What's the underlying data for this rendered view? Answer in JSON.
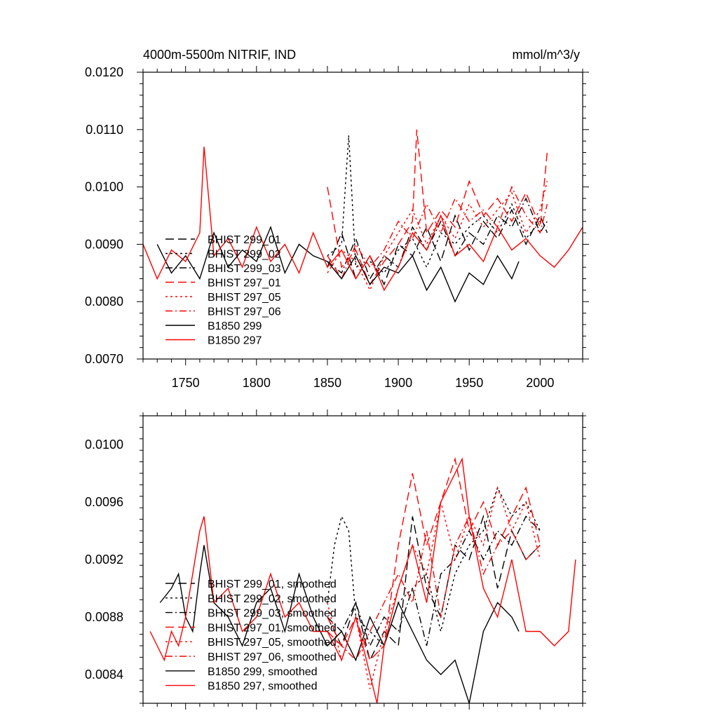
{
  "chart_data": [
    {
      "type": "line",
      "title_left": "4000m-5500m NITRIF, IND",
      "title_right": "mmol/m^3/y",
      "xlim": [
        1720,
        2030
      ],
      "ylim": [
        0.007,
        0.012
      ],
      "x_ticks": [
        1750,
        1800,
        1850,
        1900,
        1950,
        2000
      ],
      "x_tick_labels": [
        "1750",
        "1800",
        "1850",
        "1900",
        "1950",
        "2000"
      ],
      "y_ticks": [
        0.007,
        0.008,
        0.009,
        0.01,
        0.011,
        0.012
      ],
      "y_tick_labels": [
        "0.0070",
        "0.0080",
        "0.0090",
        "0.0100",
        "0.0110",
        "0.0120"
      ],
      "legend": "lower-left",
      "series": [
        {
          "name": "BHIST 299_01",
          "color": "#000000",
          "dash": "longdash",
          "x": [
            1850,
            1860,
            1870,
            1880,
            1890,
            1900,
            1910,
            1920,
            1930,
            1940,
            1950,
            1960,
            1970,
            1980,
            1990,
            2000,
            2005
          ],
          "y": [
            0.0086,
            0.0092,
            0.0084,
            0.0088,
            0.0083,
            0.009,
            0.0088,
            0.0093,
            0.0087,
            0.0095,
            0.0089,
            0.0094,
            0.0091,
            0.0096,
            0.009,
            0.0095,
            0.0092
          ]
        },
        {
          "name": "BHIST 299_02",
          "color": "#000000",
          "dash": "dotted",
          "x": [
            1850,
            1860,
            1865,
            1870,
            1880,
            1890,
            1900,
            1910,
            1920,
            1930,
            1940,
            1950,
            1960,
            1970,
            1980,
            1990,
            2000,
            2005
          ],
          "y": [
            0.0088,
            0.009,
            0.0109,
            0.0086,
            0.0087,
            0.0085,
            0.0089,
            0.0091,
            0.0086,
            0.0092,
            0.009,
            0.0093,
            0.0095,
            0.0092,
            0.0097,
            0.0091,
            0.0094,
            0.0093
          ]
        },
        {
          "name": "BHIST 299_03",
          "color": "#000000",
          "dash": "dashdot",
          "x": [
            1850,
            1860,
            1870,
            1880,
            1890,
            1900,
            1910,
            1920,
            1930,
            1940,
            1950,
            1960,
            1970,
            1980,
            1990,
            2000,
            2005
          ],
          "y": [
            0.0087,
            0.0085,
            0.0091,
            0.0084,
            0.0088,
            0.0086,
            0.0093,
            0.0089,
            0.0094,
            0.0088,
            0.0092,
            0.009,
            0.0095,
            0.0093,
            0.0098,
            0.0092,
            0.0094
          ]
        },
        {
          "name": "BHIST 297_01",
          "color": "#ff0000",
          "dash": "longdash",
          "x": [
            1850,
            1860,
            1870,
            1880,
            1890,
            1900,
            1910,
            1913,
            1920,
            1930,
            1940,
            1950,
            1960,
            1970,
            1980,
            1990,
            2000,
            2005
          ],
          "y": [
            0.01,
            0.0086,
            0.0089,
            0.0083,
            0.0087,
            0.009,
            0.0094,
            0.011,
            0.0092,
            0.0096,
            0.0093,
            0.0101,
            0.0095,
            0.0098,
            0.0094,
            0.0099,
            0.0093,
            0.0106
          ]
        },
        {
          "name": "BHIST 297_05",
          "color": "#ff0000",
          "dash": "dotted",
          "x": [
            1850,
            1860,
            1870,
            1880,
            1890,
            1900,
            1910,
            1920,
            1930,
            1940,
            1950,
            1960,
            1970,
            1980,
            1990,
            2000,
            2005
          ],
          "y": [
            0.0085,
            0.0089,
            0.0087,
            0.0082,
            0.0088,
            0.0092,
            0.0096,
            0.009,
            0.0095,
            0.0091,
            0.0097,
            0.0093,
            0.0096,
            0.0099,
            0.0092,
            0.0096,
            0.0101
          ]
        },
        {
          "name": "BHIST 297_06",
          "color": "#ff0000",
          "dash": "dashdot",
          "x": [
            1850,
            1860,
            1870,
            1880,
            1890,
            1900,
            1910,
            1920,
            1930,
            1940,
            1950,
            1960,
            1970,
            1980,
            1990,
            2000,
            2005
          ],
          "y": [
            0.0088,
            0.0084,
            0.009,
            0.0086,
            0.0089,
            0.0094,
            0.0091,
            0.0097,
            0.0092,
            0.0098,
            0.0094,
            0.0096,
            0.0093,
            0.01,
            0.0095,
            0.0092,
            0.0097
          ]
        },
        {
          "name": "B1850 299",
          "color": "#000000",
          "dash": "solid",
          "x": [
            1730,
            1740,
            1750,
            1760,
            1770,
            1780,
            1790,
            1800,
            1810,
            1820,
            1830,
            1840,
            1850,
            1860,
            1870,
            1880,
            1890,
            1900,
            1910,
            1920,
            1930,
            1940,
            1950,
            1960,
            1970,
            1980,
            1985
          ],
          "y": [
            0.009,
            0.0085,
            0.0088,
            0.0084,
            0.0092,
            0.0086,
            0.0089,
            0.0087,
            0.0093,
            0.0085,
            0.009,
            0.0088,
            0.0087,
            0.0084,
            0.0088,
            0.0083,
            0.0086,
            0.0085,
            0.0088,
            0.0082,
            0.0086,
            0.008,
            0.0085,
            0.0083,
            0.0088,
            0.0084,
            0.0087
          ]
        },
        {
          "name": "B1850 297",
          "color": "#ff0000",
          "dash": "solid",
          "x": [
            1720,
            1730,
            1740,
            1750,
            1760,
            1763,
            1770,
            1780,
            1790,
            1800,
            1810,
            1820,
            1830,
            1840,
            1850,
            1860,
            1870,
            1880,
            1890,
            1900,
            1910,
            1920,
            1930,
            1940,
            1950,
            1960,
            1970,
            1980,
            1990,
            2000,
            2010,
            2020,
            2030
          ],
          "y": [
            0.009,
            0.0084,
            0.0089,
            0.0087,
            0.0092,
            0.0107,
            0.0088,
            0.0091,
            0.0086,
            0.0093,
            0.0087,
            0.009,
            0.0085,
            0.0092,
            0.0086,
            0.0089,
            0.0084,
            0.0088,
            0.0082,
            0.0086,
            0.0092,
            0.0089,
            0.0095,
            0.0088,
            0.009,
            0.0087,
            0.0093,
            0.0089,
            0.0091,
            0.0088,
            0.0086,
            0.0089,
            0.0093
          ]
        }
      ]
    },
    {
      "type": "line",
      "xlim": [
        1720,
        2030
      ],
      "ylim": [
        0.0082,
        0.0102
      ],
      "x_ticks": [
        1750,
        1800,
        1850,
        1900,
        1950,
        2000
      ],
      "y_ticks": [
        0.0084,
        0.0088,
        0.0092,
        0.0096,
        0.01
      ],
      "y_tick_labels": [
        "0.0084",
        "0.0088",
        "0.0092",
        "0.0096",
        "0.0100"
      ],
      "legend": "lower-left",
      "series": [
        {
          "name": "BHIST 299_01, smoothed",
          "color": "#000000",
          "dash": "longdash",
          "x": [
            1850,
            1860,
            1870,
            1880,
            1890,
            1900,
            1910,
            1920,
            1930,
            1940,
            1950,
            1960,
            1970,
            1980,
            1990,
            2000
          ],
          "y": [
            0.0088,
            0.0086,
            0.0089,
            0.0085,
            0.0087,
            0.0086,
            0.0095,
            0.009,
            0.0088,
            0.0093,
            0.0092,
            0.0095,
            0.009,
            0.0094,
            0.0092,
            0.0093
          ]
        },
        {
          "name": "BHIST 299_02, smoothed",
          "color": "#000000",
          "dash": "dotted",
          "x": [
            1850,
            1855,
            1860,
            1865,
            1870,
            1880,
            1890,
            1900,
            1910,
            1920,
            1930,
            1940,
            1950,
            1960,
            1970,
            1980,
            1990,
            2000
          ],
          "y": [
            0.0089,
            0.0093,
            0.0095,
            0.0094,
            0.0088,
            0.0087,
            0.0086,
            0.0089,
            0.009,
            0.0091,
            0.0087,
            0.0091,
            0.0093,
            0.0094,
            0.0097,
            0.0095,
            0.0096,
            0.0094
          ]
        },
        {
          "name": "BHIST 299_03, smoothed",
          "color": "#000000",
          "dash": "dashdot",
          "x": [
            1850,
            1860,
            1870,
            1880,
            1890,
            1900,
            1910,
            1920,
            1930,
            1940,
            1950,
            1960,
            1970,
            1980,
            1990,
            2000
          ],
          "y": [
            0.0088,
            0.0087,
            0.0089,
            0.0086,
            0.0088,
            0.0087,
            0.009,
            0.0086,
            0.0091,
            0.0092,
            0.0094,
            0.0092,
            0.0094,
            0.0093,
            0.0095,
            0.0094
          ]
        },
        {
          "name": "BHIST 297_01, smoothed",
          "color": "#ff0000",
          "dash": "longdash",
          "x": [
            1850,
            1860,
            1870,
            1880,
            1890,
            1900,
            1910,
            1920,
            1930,
            1940,
            1950,
            1960,
            1970,
            1980,
            1990,
            2000
          ],
          "y": [
            0.0087,
            0.0086,
            0.0088,
            0.0085,
            0.0086,
            0.0093,
            0.0098,
            0.0093,
            0.0096,
            0.0099,
            0.0094,
            0.0096,
            0.0093,
            0.0095,
            0.0097,
            0.0093
          ]
        },
        {
          "name": "BHIST 297_05, smoothed",
          "color": "#ff0000",
          "dash": "dotted",
          "x": [
            1850,
            1860,
            1870,
            1880,
            1890,
            1900,
            1910,
            1920,
            1930,
            1940,
            1950,
            1960,
            1970,
            1980,
            1990,
            2000
          ],
          "y": [
            0.0089,
            0.0085,
            0.0088,
            0.0083,
            0.0087,
            0.009,
            0.0093,
            0.0091,
            0.0096,
            0.0092,
            0.0095,
            0.0093,
            0.0097,
            0.0094,
            0.0096,
            0.0092
          ]
        },
        {
          "name": "BHIST 297_06, smoothed",
          "color": "#ff0000",
          "dash": "dashdot",
          "x": [
            1850,
            1860,
            1870,
            1880,
            1890,
            1900,
            1910,
            1920,
            1930,
            1940,
            1950,
            1960,
            1970,
            1980,
            1990,
            2000
          ],
          "y": [
            0.0088,
            0.0086,
            0.0085,
            0.0087,
            0.0089,
            0.0091,
            0.0089,
            0.0094,
            0.0088,
            0.0093,
            0.0095,
            0.0091,
            0.0093,
            0.0094,
            0.0092,
            0.0093
          ]
        },
        {
          "name": "B1850 299, smoothed",
          "color": "#000000",
          "dash": "solid",
          "x": [
            1732,
            1740,
            1745,
            1750,
            1755,
            1760,
            1763,
            1770,
            1780,
            1790,
            1800,
            1810,
            1820,
            1830,
            1840,
            1850,
            1860,
            1870,
            1880,
            1890,
            1900,
            1910,
            1920,
            1930,
            1940,
            1950,
            1960,
            1970,
            1980,
            1985
          ],
          "y": [
            0.0089,
            0.009,
            0.0091,
            0.0088,
            0.0087,
            0.0091,
            0.0093,
            0.0089,
            0.0088,
            0.0086,
            0.0089,
            0.009,
            0.0087,
            0.0091,
            0.0088,
            0.0086,
            0.0087,
            0.0085,
            0.0088,
            0.0086,
            0.0089,
            0.0087,
            0.0085,
            0.0084,
            0.0085,
            0.0082,
            0.0087,
            0.0089,
            0.0088,
            0.0087
          ]
        },
        {
          "name": "B1850 297, smoothed",
          "color": "#ff0000",
          "dash": "solid",
          "x": [
            1725,
            1730,
            1735,
            1740,
            1745,
            1750,
            1755,
            1760,
            1763,
            1770,
            1780,
            1790,
            1800,
            1810,
            1820,
            1830,
            1840,
            1850,
            1860,
            1870,
            1880,
            1885,
            1890,
            1900,
            1910,
            1920,
            1930,
            1940,
            1945,
            1950,
            1960,
            1970,
            1980,
            1990,
            2000,
            2010,
            2020,
            2025
          ],
          "y": [
            0.0087,
            0.0086,
            0.0085,
            0.0087,
            0.0086,
            0.0088,
            0.0091,
            0.0094,
            0.0095,
            0.0089,
            0.009,
            0.0087,
            0.0088,
            0.0091,
            0.0088,
            0.0089,
            0.0087,
            0.0087,
            0.0085,
            0.0088,
            0.0084,
            0.0082,
            0.0086,
            0.009,
            0.0093,
            0.0089,
            0.0096,
            0.0098,
            0.0099,
            0.0095,
            0.009,
            0.0088,
            0.0092,
            0.0087,
            0.0087,
            0.0086,
            0.0087,
            0.0092
          ]
        }
      ]
    }
  ]
}
